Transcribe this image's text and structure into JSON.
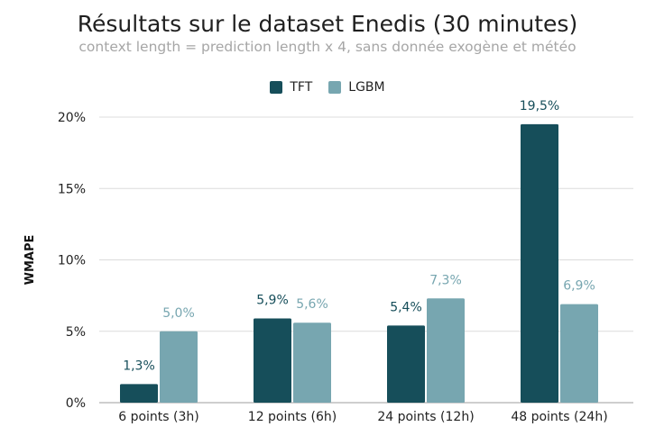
{
  "chart_data": {
    "type": "bar",
    "title": "Résultats sur le dataset Enedis (30 minutes)",
    "subtitle": "context length = prediction length x 4, sans donnée exogène et météo",
    "xlabel": "",
    "ylabel": "WMAPE",
    "categories": [
      "6 points (3h)",
      "12 points (6h)",
      "24 points (12h)",
      "48 points (24h)"
    ],
    "series": [
      {
        "name": "TFT",
        "color": "#164e5a",
        "label_color": "#164e5a",
        "values": [
          1.3,
          5.9,
          5.4,
          19.5
        ],
        "labels": [
          "1,3%",
          "5,9%",
          "5,4%",
          "19,5%"
        ]
      },
      {
        "name": "LGBM",
        "color": "#77a6b0",
        "label_color": "#77a6b0",
        "values": [
          5.0,
          5.6,
          7.3,
          6.9
        ],
        "labels": [
          "5,0%",
          "5,6%",
          "7,3%",
          "6,9%"
        ]
      }
    ],
    "ylim": [
      0,
      20
    ],
    "yticks": [
      0,
      5,
      10,
      15,
      20
    ],
    "ytick_labels": [
      "0%",
      "5%",
      "10%",
      "15%",
      "20%"
    ],
    "grid": true,
    "legend_position": "top-center"
  }
}
